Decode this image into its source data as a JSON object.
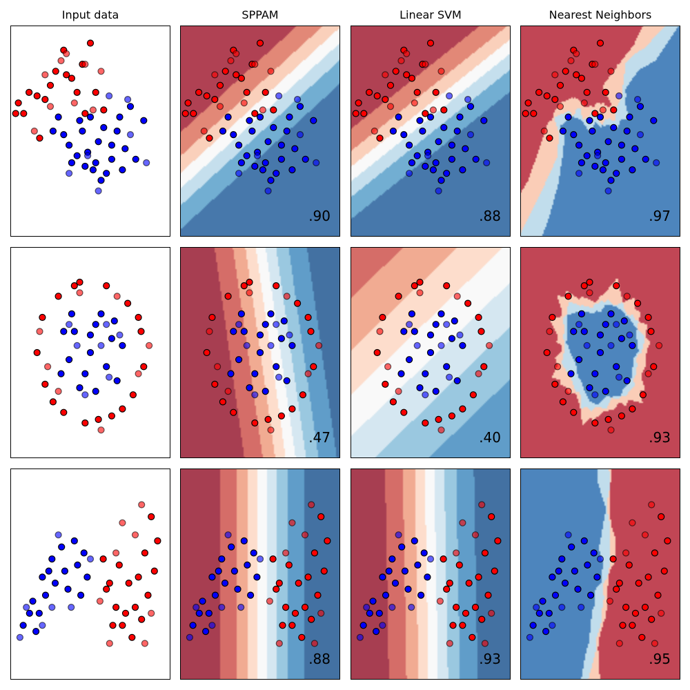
{
  "column_titles": [
    "Input data",
    "SPPAM",
    "Linear SVM",
    "Nearest Neighbors"
  ],
  "colors": {
    "class0": "#ff0000",
    "class1": "#0000ff",
    "cmap_RdBu": [
      "#67001f",
      "#b2182b",
      "#d6604d",
      "#f4a582",
      "#fddbc7",
      "#f7f7f7",
      "#d1e5f0",
      "#92c5de",
      "#4393c3",
      "#2166ac",
      "#053061"
    ],
    "background_alpha": 0.8
  },
  "chart_data": [
    {
      "type": "scatter",
      "title": "Input data",
      "dataset": "linearly separable",
      "xlim": [
        -2.5,
        3.5
      ],
      "ylim": [
        -2.5,
        3.5
      ],
      "train_points": [
        [
          -1.8,
          1.6,
          0
        ],
        [
          -2.0,
          1.0,
          0
        ],
        [
          -1.4,
          0.3,
          0
        ],
        [
          -0.8,
          2.2,
          0
        ],
        [
          -0.2,
          2.0,
          0
        ],
        [
          0.5,
          3.0,
          0
        ],
        [
          0.2,
          2.4,
          0
        ],
        [
          -1.2,
          1.4,
          0
        ],
        [
          0.0,
          1.6,
          0
        ],
        [
          -2.3,
          1.0,
          0
        ],
        [
          -1.5,
          1.5,
          0
        ],
        [
          -0.5,
          2.8,
          0
        ],
        [
          0.3,
          1.0,
          0
        ],
        [
          -1.0,
          1.8,
          0
        ],
        [
          1.0,
          1.1,
          0
        ],
        [
          -0.4,
          2.1,
          0
        ],
        [
          0.7,
          1.6,
          0
        ],
        [
          -2.2,
          1.3,
          0
        ],
        [
          -0.9,
          0.5,
          1
        ],
        [
          0.1,
          0.8,
          1
        ],
        [
          0.8,
          0.2,
          1
        ],
        [
          1.5,
          0.5,
          1
        ],
        [
          2.0,
          1.2,
          1
        ],
        [
          1.3,
          -0.3,
          1
        ],
        [
          0.6,
          -0.6,
          1
        ],
        [
          -0.3,
          0.1,
          1
        ],
        [
          0.4,
          -0.1,
          1
        ],
        [
          1.8,
          0.0,
          1
        ],
        [
          2.5,
          0.8,
          1
        ],
        [
          0.9,
          -0.9,
          1
        ],
        [
          0.2,
          0.5,
          1
        ],
        [
          -0.5,
          0.4,
          1
        ],
        [
          1.0,
          0.6,
          1
        ],
        [
          2.2,
          -0.3,
          1
        ],
        [
          0.0,
          -0.2,
          1
        ],
        [
          1.1,
          -0.7,
          1
        ],
        [
          -0.7,
          0.9,
          1
        ],
        [
          0.5,
          0.9,
          1
        ],
        [
          1.6,
          0.9,
          1
        ],
        [
          0.3,
          -0.5,
          1
        ],
        [
          1.3,
          0.1,
          1
        ],
        [
          -0.2,
          -0.4,
          1
        ],
        [
          1.7,
          -0.6,
          1
        ],
        [
          0.7,
          -0.4,
          1
        ]
      ],
      "test_points": [
        [
          -1.6,
          0.5,
          0
        ],
        [
          -0.4,
          2.7,
          0
        ],
        [
          -0.6,
          2.5,
          0
        ],
        [
          0.3,
          2.4,
          0
        ],
        [
          -1.0,
          1.2,
          0
        ],
        [
          0.6,
          1.1,
          0
        ],
        [
          0.9,
          2.2,
          0
        ],
        [
          -1.2,
          2.1,
          0
        ],
        [
          -0.1,
          1.3,
          0
        ],
        [
          1.2,
          1.5,
          1
        ],
        [
          2.0,
          0.4,
          1
        ],
        [
          0.8,
          -1.2,
          1
        ],
        [
          2.6,
          -0.4,
          1
        ],
        [
          -0.3,
          -0.7,
          1
        ],
        [
          1.9,
          1.4,
          1
        ],
        [
          0.4,
          -0.2,
          1
        ]
      ]
    },
    {
      "type": "scatter",
      "title": "SPPAM",
      "dataset": "linearly separable",
      "xlim": [
        -2.5,
        3.5
      ],
      "ylim": [
        -2.5,
        3.5
      ],
      "score": ".90",
      "decision": "linear",
      "weights": [
        0.9,
        -1.3
      ],
      "bias": 1.05,
      "levels": 7
    },
    {
      "type": "scatter",
      "title": "Linear SVM",
      "dataset": "linearly separable",
      "xlim": [
        -2.5,
        3.5
      ],
      "ylim": [
        -2.5,
        3.5
      ],
      "score": ".88",
      "decision": "linear",
      "weights": [
        0.85,
        -1.4
      ],
      "bias": 1.1,
      "levels": 7
    },
    {
      "type": "scatter",
      "title": "Nearest Neighbors",
      "dataset": "linearly separable",
      "xlim": [
        -2.5,
        3.5
      ],
      "ylim": [
        -2.5,
        3.5
      ],
      "score": ".97",
      "decision": "knn"
    },
    {
      "type": "scatter",
      "title": "Input data",
      "dataset": "circles",
      "xlim": [
        -1.5,
        1.5
      ],
      "ylim": [
        -1.5,
        1.5
      ],
      "train_points": [
        [
          -0.9,
          0.5,
          0
        ],
        [
          -0.6,
          0.8,
          0
        ],
        [
          -0.2,
          1.0,
          0
        ],
        [
          0.3,
          0.95,
          0
        ],
        [
          0.7,
          0.7,
          0
        ],
        [
          0.95,
          0.3,
          0
        ],
        [
          1.0,
          -0.2,
          0
        ],
        [
          0.8,
          -0.6,
          0
        ],
        [
          0.4,
          -0.9,
          0
        ],
        [
          -0.1,
          -1.0,
          0
        ],
        [
          -0.5,
          -0.85,
          0
        ],
        [
          -0.85,
          -0.45,
          0
        ],
        [
          -1.0,
          0.0,
          0
        ],
        [
          -0.7,
          -0.7,
          0
        ],
        [
          0.6,
          -0.8,
          0
        ],
        [
          0.9,
          0.5,
          0
        ],
        [
          -0.3,
          0.95,
          0
        ],
        [
          0.15,
          -0.95,
          0
        ],
        [
          -0.3,
          0.3,
          1
        ],
        [
          0.1,
          0.4,
          1
        ],
        [
          0.4,
          0.2,
          1
        ],
        [
          0.3,
          -0.2,
          1
        ],
        [
          -0.1,
          -0.3,
          1
        ],
        [
          -0.4,
          -0.1,
          1
        ],
        [
          0.0,
          0.0,
          1
        ],
        [
          0.2,
          0.55,
          1
        ],
        [
          -0.5,
          0.3,
          1
        ],
        [
          0.5,
          -0.4,
          1
        ],
        [
          -0.2,
          -0.5,
          1
        ],
        [
          0.45,
          0.45,
          1
        ],
        [
          -0.35,
          0.55,
          1
        ],
        [
          0.1,
          -0.55,
          1
        ],
        [
          -0.55,
          -0.3,
          1
        ],
        [
          0.6,
          0.1,
          1
        ],
        [
          0.0,
          0.25,
          1
        ]
      ],
      "test_points": [
        [
          -0.8,
          -0.2,
          0
        ],
        [
          0.9,
          -0.3,
          0
        ],
        [
          -0.2,
          0.85,
          0
        ],
        [
          0.5,
          0.8,
          0
        ],
        [
          -0.6,
          -0.55,
          0
        ],
        [
          0.2,
          -1.1,
          0
        ],
        [
          -0.95,
          0.3,
          0
        ],
        [
          1.1,
          0.1,
          0
        ],
        [
          0.2,
          0.1,
          1
        ],
        [
          -0.25,
          0.1,
          1
        ],
        [
          0.35,
          -0.35,
          1
        ],
        [
          -0.4,
          0.4,
          1
        ],
        [
          0.55,
          0.25,
          1
        ],
        [
          -0.1,
          -0.6,
          1
        ],
        [
          0.3,
          0.4,
          1
        ]
      ]
    },
    {
      "type": "scatter",
      "title": "SPPAM",
      "dataset": "circles",
      "xlim": [
        -1.5,
        1.5
      ],
      "ylim": [
        -1.5,
        1.5
      ],
      "score": ".47",
      "decision": "linear",
      "weights": [
        2.4,
        0.45
      ],
      "bias": -0.7,
      "levels": 9
    },
    {
      "type": "scatter",
      "title": "Linear SVM",
      "dataset": "circles",
      "xlim": [
        -1.5,
        1.5
      ],
      "ylim": [
        -1.5,
        1.5
      ],
      "score": ".40",
      "decision": "linear",
      "weights": [
        0.55,
        -0.75
      ],
      "bias": 0.15,
      "levels": 9
    },
    {
      "type": "scatter",
      "title": "Nearest Neighbors",
      "dataset": "circles",
      "xlim": [
        -1.5,
        1.5
      ],
      "ylim": [
        -1.5,
        1.5
      ],
      "score": ".93",
      "decision": "knn"
    },
    {
      "type": "scatter",
      "title": "Input data",
      "dataset": "moons",
      "xlim": [
        -2.0,
        3.0
      ],
      "ylim": [
        -1.5,
        2.0
      ],
      "train_points": [
        [
          0.9,
          0.5,
          0
        ],
        [
          1.1,
          0.1,
          0
        ],
        [
          1.3,
          -0.3,
          0
        ],
        [
          1.5,
          -0.6,
          0
        ],
        [
          1.8,
          -0.8,
          0
        ],
        [
          2.1,
          -0.5,
          0
        ],
        [
          2.3,
          -0.1,
          0
        ],
        [
          2.5,
          0.3,
          0
        ],
        [
          2.6,
          0.8,
          0
        ],
        [
          2.4,
          1.2,
          0
        ],
        [
          1.7,
          0.1,
          0
        ],
        [
          1.9,
          -0.3,
          0
        ],
        [
          1.0,
          0.0,
          0
        ],
        [
          1.4,
          0.4,
          0
        ],
        [
          2.2,
          0.6,
          0
        ],
        [
          1.6,
          -0.4,
          0
        ],
        [
          2.0,
          0.2,
          0
        ],
        [
          1.2,
          -0.6,
          0
        ],
        [
          -1.6,
          -0.6,
          1
        ],
        [
          -1.3,
          -0.2,
          1
        ],
        [
          -1.0,
          0.2,
          1
        ],
        [
          -0.7,
          0.5,
          1
        ],
        [
          -0.4,
          0.7,
          1
        ],
        [
          0.0,
          0.8,
          1
        ],
        [
          0.3,
          0.6,
          1
        ],
        [
          -1.2,
          -0.7,
          1
        ],
        [
          -0.9,
          -0.1,
          1
        ],
        [
          -0.6,
          0.1,
          1
        ],
        [
          -0.3,
          0.3,
          1
        ],
        [
          0.1,
          0.4,
          1
        ],
        [
          -1.4,
          -0.4,
          1
        ],
        [
          -0.8,
          0.3,
          1
        ],
        [
          0.4,
          0.2,
          1
        ],
        [
          -0.2,
          0.0,
          1
        ],
        [
          -1.1,
          -0.4,
          1
        ],
        [
          0.2,
          -0.1,
          1
        ]
      ],
      "test_points": [
        [
          1.3,
          0.6,
          0
        ],
        [
          2.1,
          1.4,
          0
        ],
        [
          1.5,
          1.1,
          0
        ],
        [
          2.2,
          -0.9,
          0
        ],
        [
          0.8,
          -0.2,
          0
        ],
        [
          1.9,
          0.9,
          0
        ],
        [
          2.4,
          -0.4,
          0
        ],
        [
          1.1,
          -0.9,
          0
        ],
        [
          -1.5,
          -0.3,
          1
        ],
        [
          -0.5,
          0.9,
          1
        ],
        [
          -0.1,
          -0.3,
          1
        ],
        [
          -1.0,
          -0.6,
          1
        ],
        [
          0.5,
          0.5,
          1
        ],
        [
          -0.7,
          -0.3,
          1
        ],
        [
          -1.7,
          -0.8,
          1
        ]
      ]
    },
    {
      "type": "scatter",
      "title": "SPPAM",
      "dataset": "moons",
      "xlim": [
        -2.0,
        3.0
      ],
      "ylim": [
        -1.5,
        2.0
      ],
      "score": ".88",
      "decision": "linear",
      "weights": [
        1.6,
        0.0
      ],
      "bias": -0.9,
      "levels": 9
    },
    {
      "type": "scatter",
      "title": "Linear SVM",
      "dataset": "moons",
      "xlim": [
        -2.0,
        3.0
      ],
      "ylim": [
        -1.5,
        2.0
      ],
      "score": ".93",
      "decision": "linear",
      "weights": [
        1.5,
        0.05
      ],
      "bias": -0.8,
      "levels": 9
    },
    {
      "type": "scatter",
      "title": "Nearest Neighbors",
      "dataset": "moons",
      "xlim": [
        -2.0,
        3.0
      ],
      "ylim": [
        -1.5,
        2.0
      ],
      "score": ".95",
      "decision": "knn"
    }
  ]
}
